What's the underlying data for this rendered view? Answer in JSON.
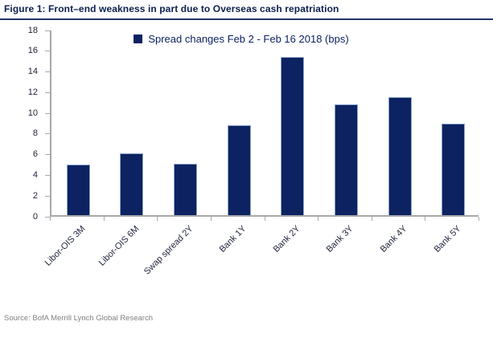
{
  "page": {
    "title": "Figure 1: Front–end weakness in part due to Overseas cash repatriation",
    "source": "Source: BofA Merrill Lynch Global Research"
  },
  "legend": {
    "label": "Spread changes Feb 2 - Feb 16 2018 (bps)"
  },
  "colors": {
    "navy_accent": "#0c2261",
    "bar_fill": "#0c2261",
    "bar_edge": "#8ea5cc",
    "title_text": "#0b1f4e",
    "rule": "#1f3864",
    "axis_line": "#a8a8a8",
    "tick_text": "#21263b",
    "source_text": "#7f7f7f"
  },
  "chart_data": {
    "type": "bar",
    "title": "Front–end weakness in part due to Overseas cash repatriation",
    "legend_entries": [
      "Spread changes Feb 2 - Feb 16 2018 (bps)"
    ],
    "legend_position": "top-center",
    "categories": [
      "Libor-OIS 3M",
      "Libor-OIS 6M",
      "Swap spread 2Y",
      "Bank 1Y",
      "Bank 2Y",
      "Bank 3Y",
      "Bank 4Y",
      "Bank 5Y"
    ],
    "values": [
      4.9,
      6.0,
      5.0,
      8.8,
      15.4,
      10.8,
      11.5,
      8.9
    ],
    "xlabel": "",
    "ylabel": "",
    "ylim": [
      0,
      18
    ],
    "ytick_step": 2,
    "grid": false,
    "unit": "bps"
  }
}
